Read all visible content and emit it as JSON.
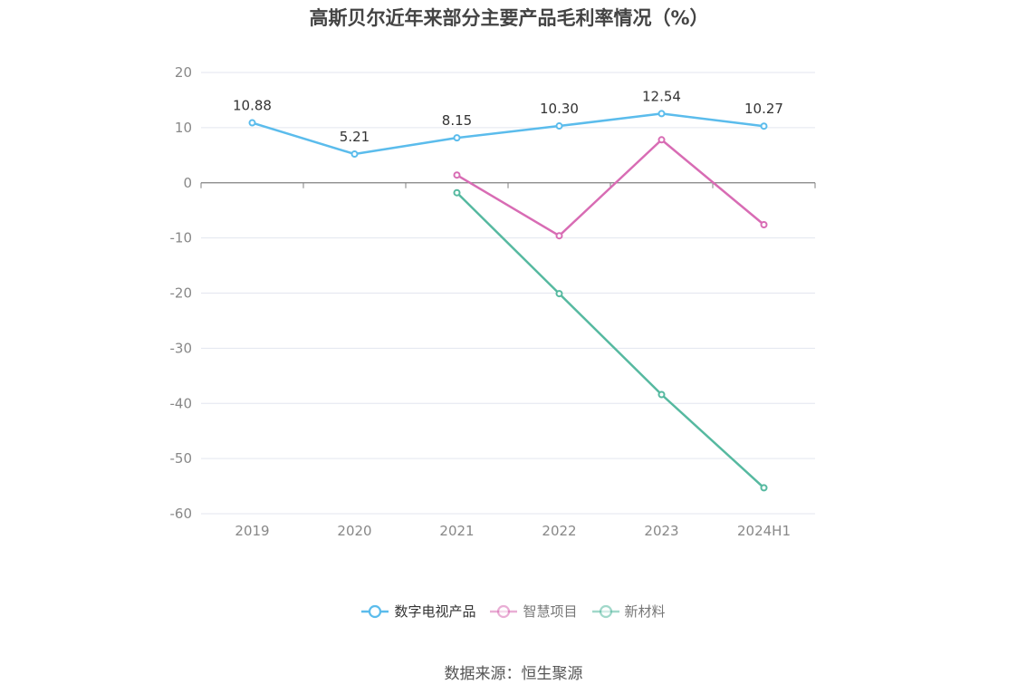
{
  "title": "高斯贝尔近年来部分主要产品毛利率情况（%）",
  "source": "数据来源：恒生聚源",
  "chart_data": {
    "type": "line",
    "categories": [
      "2019",
      "2020",
      "2021",
      "2022",
      "2023",
      "2024H1"
    ],
    "ylim": [
      -60,
      20
    ],
    "yticks": [
      20,
      10,
      0,
      -10,
      -20,
      -30,
      -40,
      -50,
      -60
    ],
    "grid": true,
    "legend_position": "bottom",
    "series": [
      {
        "name": "数字电视产品",
        "color": "#5bbcec",
        "values": [
          10.88,
          5.21,
          8.15,
          10.3,
          12.54,
          10.27
        ],
        "labels": [
          "10.88",
          "5.21",
          "8.15",
          "10.30",
          "12.54",
          "10.27"
        ]
      },
      {
        "name": "智慧项目",
        "color": "#d86cb4",
        "values": [
          null,
          null,
          1.4,
          -9.6,
          7.8,
          -7.6
        ]
      },
      {
        "name": "新材料",
        "color": "#56b9a0",
        "values": [
          null,
          null,
          -1.8,
          -20.1,
          -38.4,
          -55.3
        ]
      }
    ]
  }
}
